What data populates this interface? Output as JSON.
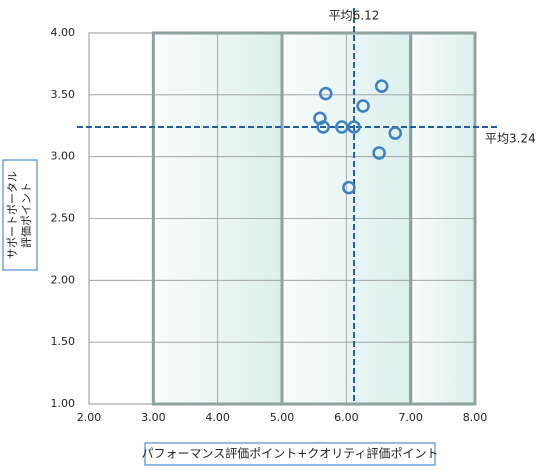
{
  "chart_data": {
    "type": "scatter",
    "x_label": "パフォーマンス評価ポイント+クオリティ評価ポイント",
    "y_label": [
      "サポートポータル",
      "評価ポイント"
    ],
    "x": [
      5.68,
      6.55,
      6.26,
      5.59,
      5.64,
      5.93,
      6.12,
      6.76,
      6.51,
      6.04
    ],
    "values": [
      3.51,
      3.57,
      3.41,
      3.31,
      3.24,
      3.24,
      3.24,
      3.19,
      3.03,
      2.75
    ],
    "color": "#3b82c0",
    "xlim": [
      2,
      8
    ],
    "xticks": [
      {
        "value": 2,
        "label": "2.00"
      },
      {
        "value": 3,
        "label": "3.00"
      },
      {
        "value": 4,
        "label": "4.00"
      },
      {
        "value": 5,
        "label": "5.00"
      },
      {
        "value": 6,
        "label": "6.00"
      },
      {
        "value": 7,
        "label": "7.00"
      },
      {
        "value": 8,
        "label": "8.00"
      }
    ],
    "ylim": [
      1,
      4
    ],
    "yticks": [
      {
        "value": 1,
        "label": "1.00"
      },
      {
        "value": 1.5,
        "label": "1.50"
      },
      {
        "value": 2,
        "label": "2.00"
      },
      {
        "value": 2.5,
        "label": "2.50"
      },
      {
        "value": 3,
        "label": "3.00"
      },
      {
        "value": 3.5,
        "label": "3.50"
      },
      {
        "value": 4,
        "label": "4.00"
      }
    ],
    "grid": true,
    "regions": [
      [
        3,
        5
      ],
      [
        5,
        7
      ],
      [
        7,
        8
      ]
    ],
    "averages": {
      "x": 6.12,
      "x_label": "平均6.12",
      "y": 3.24,
      "y_label": "平均3.24",
      "color": "#1f5f9e"
    }
  }
}
